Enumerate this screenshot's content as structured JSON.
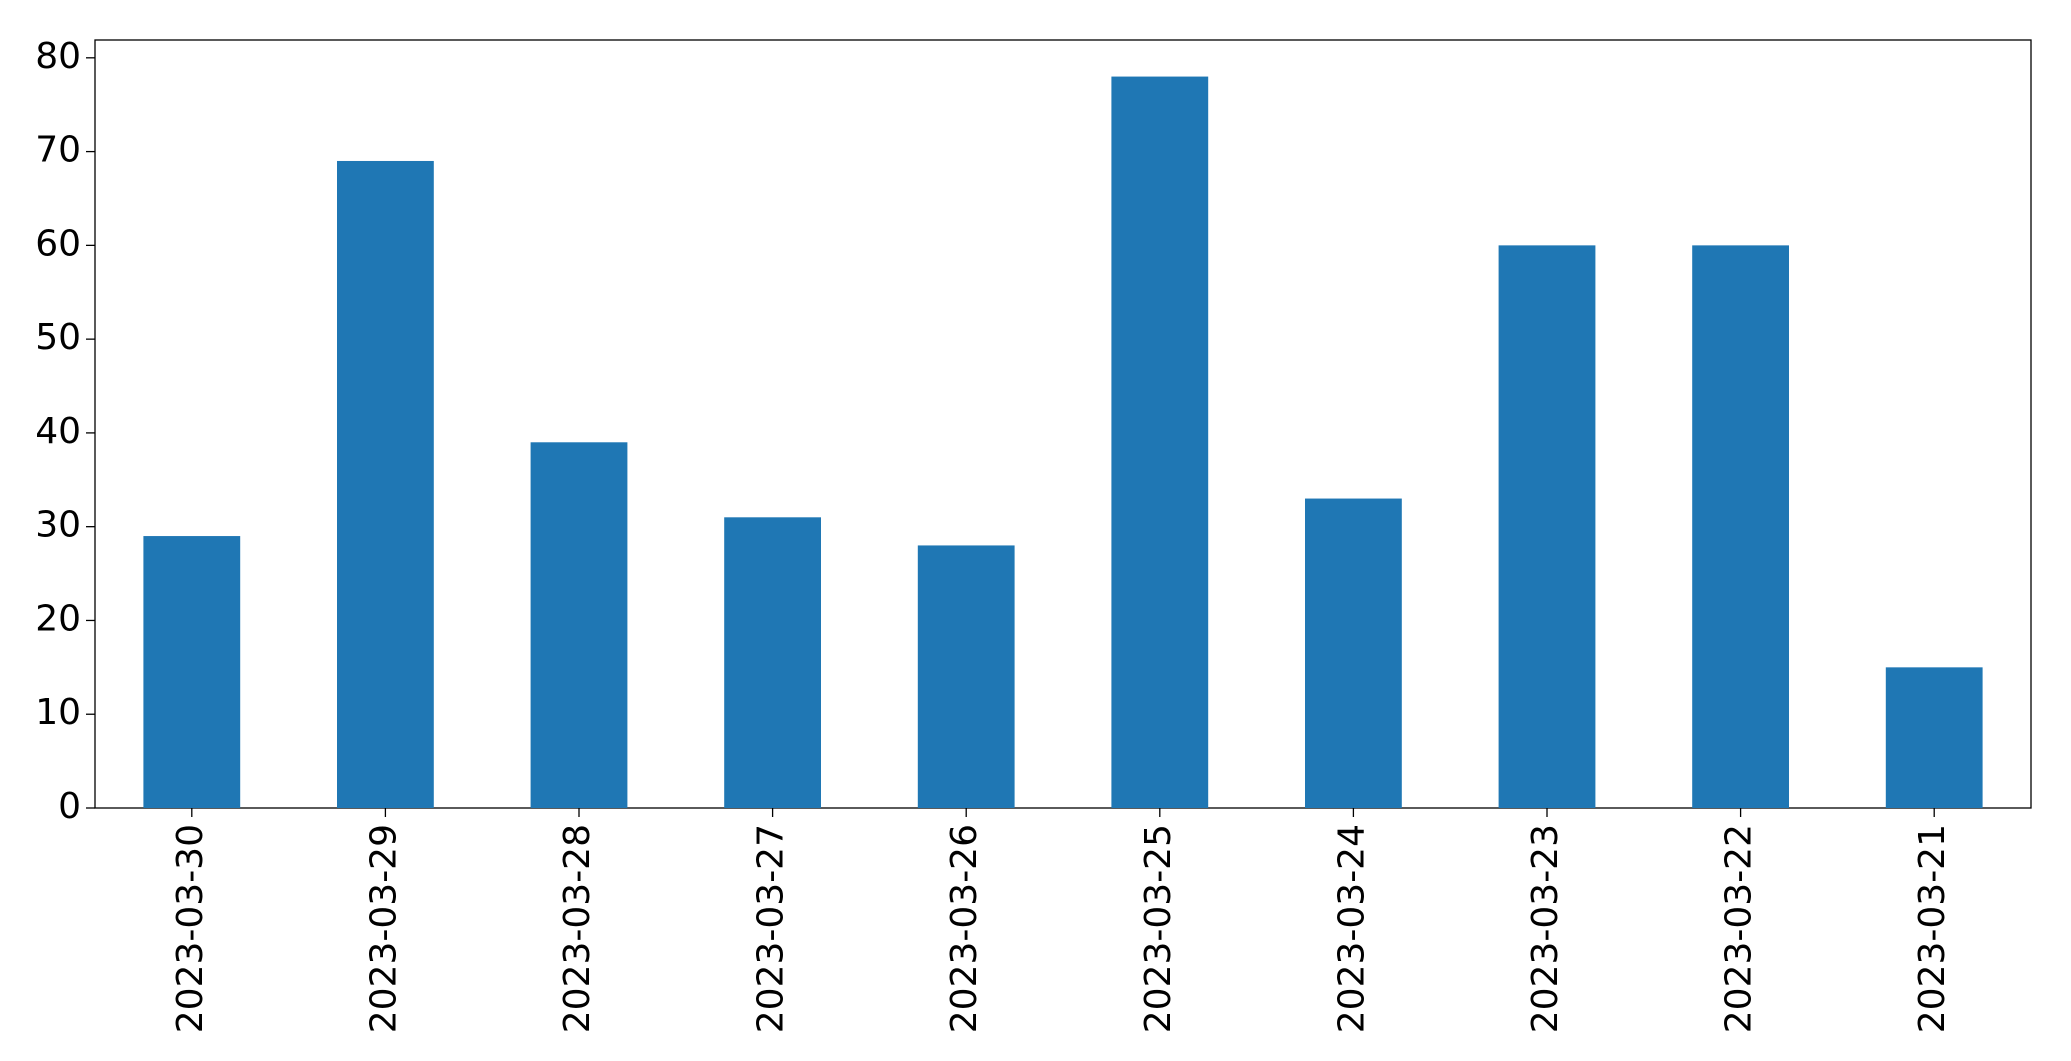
{
  "chart_data": {
    "type": "bar",
    "categories": [
      "2023-03-30",
      "2023-03-29",
      "2023-03-28",
      "2023-03-27",
      "2023-03-26",
      "2023-03-25",
      "2023-03-24",
      "2023-03-23",
      "2023-03-22",
      "2023-03-21"
    ],
    "values": [
      29,
      69,
      39,
      31,
      28,
      78,
      33,
      60,
      60,
      15
    ],
    "color": "#1f77b4",
    "ylim": [
      0,
      81.9
    ],
    "yticks": [
      0,
      10,
      20,
      30,
      40,
      50,
      60,
      70,
      80
    ],
    "grid": false
  }
}
